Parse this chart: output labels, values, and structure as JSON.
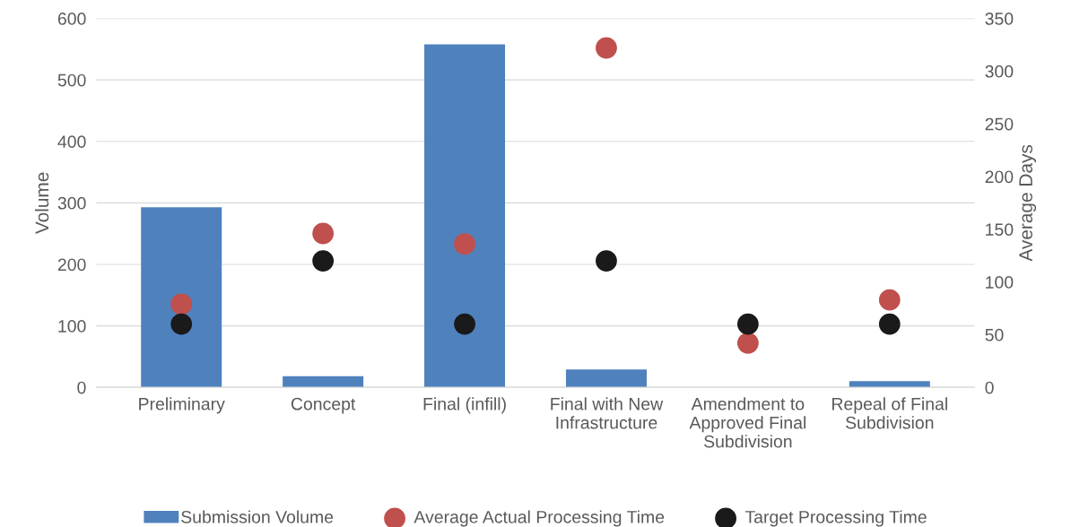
{
  "chart_data": {
    "type": "bar",
    "categories": [
      "Preliminary",
      "Concept",
      "Final (infill)",
      "Final with New Infrastructure",
      "Amendment to Approved Final Subdivision",
      "Repeal of Final Subdivision"
    ],
    "ylabel": "Volume",
    "y2label": "Average Days",
    "ylim": [
      0,
      600
    ],
    "yticks": [
      0,
      100,
      200,
      300,
      400,
      500,
      600
    ],
    "y2lim": [
      0,
      350
    ],
    "y2ticks": [
      0,
      50,
      100,
      150,
      200,
      250,
      300,
      350
    ],
    "grid": "y",
    "legend": "bottom",
    "series": [
      {
        "name": "Submission Volume",
        "color": "#4f81bd",
        "values": [
          293,
          18,
          558,
          29,
          0,
          10
        ]
      },
      {
        "name": "Average Actual Processing Time",
        "type": "scatter",
        "axis": "y2",
        "color": "#c0504d",
        "marker": "circle",
        "values": [
          79,
          146,
          136,
          322,
          42,
          83
        ]
      },
      {
        "name": "Target Processing Time",
        "type": "scatter",
        "axis": "y2",
        "color": "#1a1a1a",
        "marker": "circle",
        "values": [
          60,
          120,
          60,
          120,
          60,
          60
        ]
      }
    ]
  }
}
